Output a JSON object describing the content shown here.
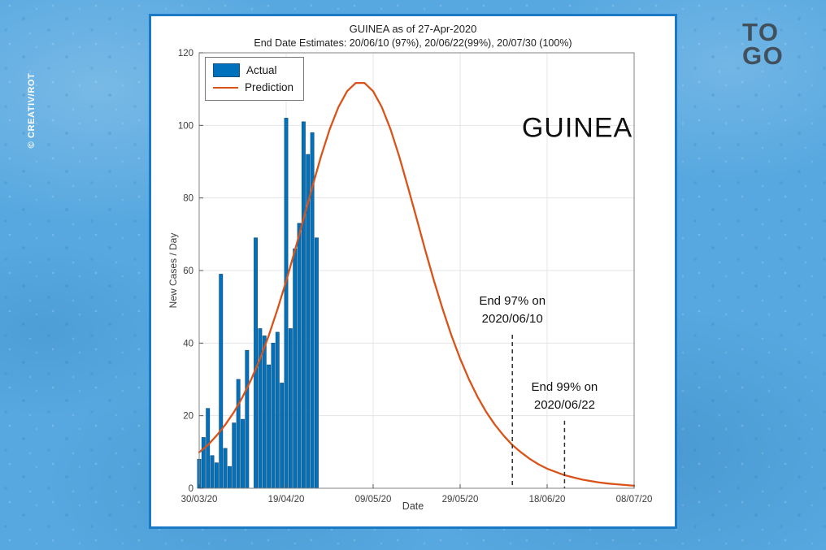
{
  "page": {
    "watermark": "© CREATIV/ROT",
    "logo_line1": "TO",
    "logo_line2": "GO"
  },
  "chart": {
    "title": "GUINEA as of 27-Apr-2020",
    "subtitle": "End Date Estimates: 20/06/10 (97%), 20/06/22(99%), 20/07/30 (100%)",
    "country_label": "GUINEA",
    "xlabel": "Date",
    "ylabel": "New Cases / Day",
    "legend": {
      "actual": "Actual",
      "prediction": "Prediction"
    }
  },
  "chart_data": {
    "type": "combo",
    "title": "GUINEA as of 27-Apr-2020",
    "subtitle": "End Date Estimates: 20/06/10 (97%), 20/06/22(99%), 20/07/30 (100%)",
    "xlabel": "Date",
    "ylabel": "New Cases / Day",
    "ylim": [
      0,
      120
    ],
    "xlim_days": [
      0,
      100
    ],
    "grid": true,
    "legend_position": "top-left",
    "y_ticks": [
      0,
      20,
      40,
      60,
      80,
      100,
      120
    ],
    "x_ticks": [
      {
        "day": 0,
        "label": "30/03/20"
      },
      {
        "day": 20,
        "label": "19/04/20"
      },
      {
        "day": 40,
        "label": "09/05/20"
      },
      {
        "day": 60,
        "label": "29/05/20"
      },
      {
        "day": 80,
        "label": "18/06/20"
      },
      {
        "day": 100,
        "label": "08/07/20"
      }
    ],
    "series": [
      {
        "name": "Actual",
        "type": "bar",
        "color": "#0072BD",
        "dates": [
          "30/03/20",
          "31/03/20",
          "01/04/20",
          "02/04/20",
          "03/04/20",
          "04/04/20",
          "05/04/20",
          "06/04/20",
          "07/04/20",
          "08/04/20",
          "09/04/20",
          "10/04/20",
          "11/04/20",
          "12/04/20",
          "13/04/20",
          "14/04/20",
          "15/04/20",
          "16/04/20",
          "17/04/20",
          "18/04/20",
          "19/04/20",
          "20/04/20",
          "21/04/20",
          "22/04/20",
          "23/04/20",
          "24/04/20",
          "25/04/20",
          "26/04/20"
        ],
        "values": [
          8,
          14,
          22,
          9,
          7,
          59,
          11,
          6,
          18,
          30,
          19,
          38,
          0,
          69,
          44,
          42,
          34,
          40,
          43,
          29,
          102,
          44,
          66,
          73,
          101,
          92,
          98,
          69
        ]
      },
      {
        "name": "Prediction",
        "type": "line",
        "color": "#D95319",
        "peak": {
          "day": 37,
          "value": 112
        },
        "points": [
          [
            0,
            9.9
          ],
          [
            2,
            11.9
          ],
          [
            4,
            14.5
          ],
          [
            6,
            17.5
          ],
          [
            8,
            21.0
          ],
          [
            10,
            25.2
          ],
          [
            12,
            30.1
          ],
          [
            14,
            35.7
          ],
          [
            16,
            42.1
          ],
          [
            18,
            49.3
          ],
          [
            20,
            57.1
          ],
          [
            22,
            65.5
          ],
          [
            24,
            74.3
          ],
          [
            26,
            83.0
          ],
          [
            28,
            91.4
          ],
          [
            30,
            98.9
          ],
          [
            32,
            105.0
          ],
          [
            34,
            109.4
          ],
          [
            36,
            111.7
          ],
          [
            38,
            111.7
          ],
          [
            40,
            109.4
          ],
          [
            42,
            105.0
          ],
          [
            44,
            98.9
          ],
          [
            46,
            91.4
          ],
          [
            48,
            83.0
          ],
          [
            50,
            74.3
          ],
          [
            52,
            65.5
          ],
          [
            54,
            57.1
          ],
          [
            56,
            49.3
          ],
          [
            58,
            42.1
          ],
          [
            60,
            35.7
          ],
          [
            62,
            30.1
          ],
          [
            64,
            25.2
          ],
          [
            66,
            21.0
          ],
          [
            68,
            17.5
          ],
          [
            70,
            14.5
          ],
          [
            72,
            11.9
          ],
          [
            74,
            9.9
          ],
          [
            76,
            8.1
          ],
          [
            78,
            6.6
          ],
          [
            80,
            5.4
          ],
          [
            82,
            4.5
          ],
          [
            84,
            3.6
          ],
          [
            86,
            3.0
          ],
          [
            88,
            2.4
          ],
          [
            90,
            2.0
          ],
          [
            92,
            1.6
          ],
          [
            94,
            1.3
          ],
          [
            96,
            1.1
          ],
          [
            98,
            0.9
          ],
          [
            100,
            0.7
          ]
        ]
      }
    ],
    "annotations": [
      {
        "line1": "End 97% on",
        "line2": "2020/06/10",
        "day": 72,
        "line_top_value": 42.3
      },
      {
        "line1": "End 99% on",
        "line2": "2020/06/22",
        "day": 84,
        "line_top_value": 18.6
      }
    ]
  },
  "colors": {
    "bar_fill": "#0072BD",
    "bar_edge": "#14517e",
    "prediction_line": "#D95319",
    "panel_border": "#1a7ac5",
    "background_blue": "#57a8e0",
    "logo_gray": "#41505a",
    "grid_gray": "#e4e4e4",
    "axis_gray": "#808080",
    "dashed_black": "#2e2e2e"
  }
}
